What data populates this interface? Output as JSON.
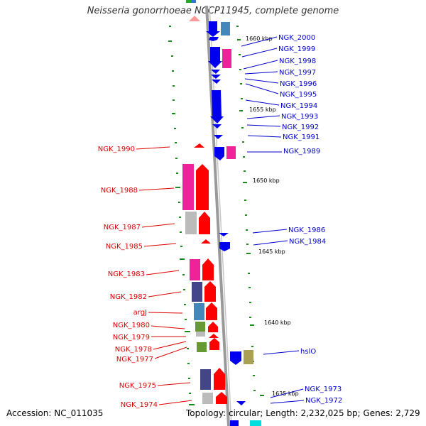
{
  "title": "Neisseria gonorrhoeae NCCP11945, complete genome",
  "footer": {
    "accession": "Accession: NC_011035",
    "summary": "Topology: circular; Length: 2,232,025 bp; Genes: 2,729"
  },
  "colors": {
    "forward_label": "#dd0000",
    "reverse_label": "#0000cc",
    "backbone": "#999999",
    "tick": "#008800"
  },
  "scale_labels": [
    "1660 kbp",
    "1655 kbp",
    "1650 kbp",
    "1645 kbp",
    "1640 kbp",
    "1635 kbp"
  ],
  "reverse_genes": [
    "NGK_2000",
    "NGK_1999",
    "NGK_1998",
    "NGK_1997",
    "NGK_1996",
    "NGK_1995",
    "NGK_1994",
    "NGK_1993",
    "NGK_1992",
    "NGK_1991",
    "NGK_1989",
    "NGK_1986",
    "NGK_1984",
    "hslO",
    "NGK_1973",
    "NGK_1972"
  ],
  "forward_genes": [
    "NGK_1990",
    "NGK_1988",
    "NGK_1987",
    "NGK_1985",
    "NGK_1983",
    "NGK_1982",
    "argJ",
    "NGK_1980",
    "NGK_1979",
    "NGK_1978",
    "NGK_1977",
    "NGK_1975",
    "NGK_1974"
  ]
}
